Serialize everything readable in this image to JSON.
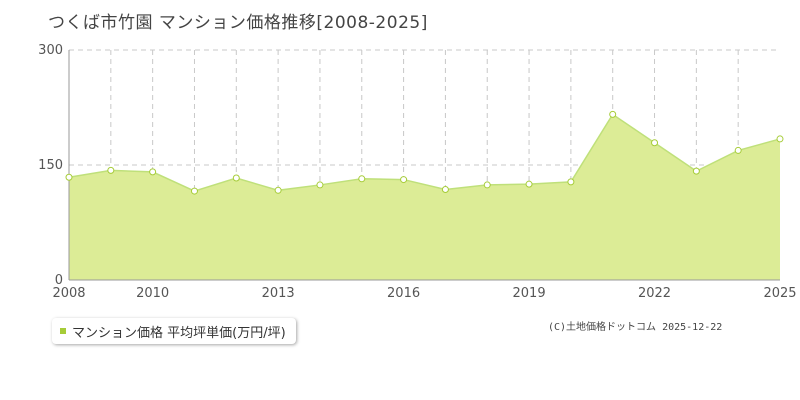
{
  "header": {
    "title": "つくば市竹園 マンション価格推移[2008-2025]"
  },
  "legend": {
    "label": "マンション価格 平均坪単価(万円/坪)"
  },
  "credit": {
    "text": "(C)土地価格ドットコム 2025-12-22"
  },
  "colors": {
    "fill": "#dcec96",
    "line": "#bfe07a",
    "marker": "#a6cc38",
    "grid": "#c8c8c8"
  },
  "chart_data": {
    "type": "area",
    "title": "つくば市竹園 マンション価格推移[2008-2025]",
    "xlabel": "",
    "ylabel": "",
    "x": [
      2008,
      2009,
      2010,
      2011,
      2012,
      2013,
      2014,
      2015,
      2016,
      2017,
      2018,
      2019,
      2020,
      2021,
      2022,
      2023,
      2024,
      2025
    ],
    "series": [
      {
        "name": "マンション価格 平均坪単価(万円/坪)",
        "values": [
          134,
          143,
          141,
          116,
          133,
          117,
          124,
          132,
          131,
          118,
          124,
          125,
          128,
          216,
          179,
          142,
          169,
          184
        ]
      }
    ],
    "xlim": [
      2008,
      2025
    ],
    "ylim": [
      0,
      300
    ],
    "yticks": [
      0,
      150,
      300
    ],
    "xtick_labels": [
      "2008",
      "2010",
      "2013",
      "2016",
      "2019",
      "2022",
      "2025"
    ],
    "grid": true,
    "legend_position": "bottom-left"
  }
}
